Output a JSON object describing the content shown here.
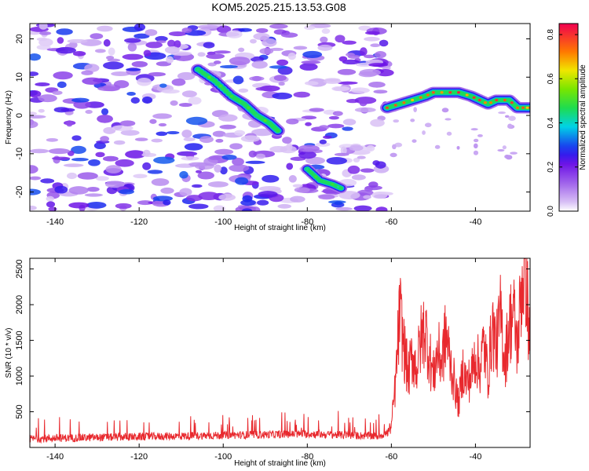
{
  "title": "KOM5.2025.215.13.53.G08",
  "chart_data": [
    {
      "type": "heatmap",
      "xlabel": "Height of straight line (km)",
      "ylabel": "Frequency (Hz)",
      "xlim": [
        -146,
        -27
      ],
      "ylim": [
        -25,
        24
      ],
      "xticks": [
        -140,
        -120,
        -100,
        -80,
        -60,
        -40
      ],
      "yticks": [
        20,
        10,
        0,
        -10,
        -20
      ],
      "colorbar": {
        "label": "Normalized spectral amplitude",
        "range": [
          0.0,
          0.85
        ],
        "ticks": [
          0.0,
          0.2,
          0.4,
          0.6,
          0.8
        ],
        "tick_labels": [
          "0.0",
          "0.2",
          "0.4",
          "0.6",
          "0.8"
        ]
      },
      "ridges": [
        {
          "name": "descending streak",
          "x": [
            -106,
            -102,
            -98,
            -95,
            -92,
            -89,
            -87
          ],
          "y": [
            12,
            9,
            5,
            3,
            0,
            -2,
            -4
          ]
        },
        {
          "name": "lower streak",
          "x": [
            -80,
            -77,
            -74,
            -72
          ],
          "y": [
            -14,
            -17,
            -18,
            -19
          ]
        },
        {
          "name": "carrier",
          "x": [
            -61,
            -58,
            -55,
            -52,
            -50,
            -47,
            -44,
            -41,
            -39,
            -37,
            -35,
            -32,
            -30,
            -28,
            -27
          ],
          "y": [
            2,
            3,
            4,
            5,
            6,
            6,
            6,
            5,
            4,
            3,
            4,
            4,
            2,
            2,
            2
          ]
        }
      ]
    },
    {
      "type": "line",
      "xlabel": "Height of straight line (km)",
      "ylabel": "SNR (10 * v/v)",
      "xlim": [
        -146,
        -27
      ],
      "ylim": [
        0,
        2650
      ],
      "xticks": [
        -140,
        -120,
        -100,
        -80,
        -60,
        -40
      ],
      "yticks": [
        500,
        1000,
        1500,
        2000,
        2500
      ],
      "series": [
        {
          "color": "#e8292e",
          "x": [
            -146,
            -140,
            -130,
            -120,
            -110,
            -100,
            -90,
            -80,
            -70,
            -63,
            -61,
            -60,
            -59,
            -58,
            -57,
            -56,
            -55,
            -54,
            -53,
            -52,
            -51,
            -50,
            -49,
            -48,
            -47,
            -46,
            -45,
            -44,
            -43,
            -42,
            -41,
            -40,
            -39,
            -38,
            -37,
            -36,
            -35,
            -34,
            -33,
            -32,
            -31,
            -30,
            -29,
            -28,
            -27
          ],
          "y": [
            120,
            130,
            140,
            150,
            160,
            170,
            180,
            190,
            170,
            160,
            200,
            300,
            900,
            1900,
            1400,
            1000,
            1300,
            1100,
            1500,
            1700,
            1300,
            1000,
            1350,
            1200,
            1600,
            1200,
            900,
            600,
            1100,
            900,
            1000,
            1300,
            1100,
            1450,
            1000,
            1700,
            1400,
            1850,
            1200,
            1700,
            1900,
            1400,
            2300,
            2500,
            1300
          ]
        }
      ]
    }
  ]
}
